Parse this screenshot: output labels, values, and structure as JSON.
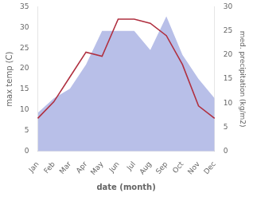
{
  "chart_data": {
    "type": "line",
    "categories": [
      "Jan",
      "Feb",
      "Mar",
      "Apr",
      "May",
      "Jun",
      "Jul",
      "Aug",
      "Sep",
      "Oct",
      "Nov",
      "Dec"
    ],
    "series": [
      {
        "type": "area",
        "color": "#b8bfe8",
        "axis": "y2",
        "values": [
          8,
          11,
          13,
          18,
          25,
          25,
          25,
          21,
          28,
          20,
          15,
          11
        ]
      },
      {
        "type": "line",
        "color": "#b03040",
        "values": [
          8,
          12,
          18,
          24,
          23,
          32,
          32,
          31,
          28,
          21,
          11,
          8
        ]
      }
    ],
    "xlabel": "date (month)",
    "ylabel": "max temp (C)",
    "y2label": "med. precipitation (kg/m2)",
    "ylim": [
      0,
      35
    ],
    "yticks": [
      0,
      5,
      10,
      15,
      20,
      25,
      30,
      35
    ],
    "y2lim": [
      0,
      30
    ],
    "y2ticks": [
      0,
      5,
      10,
      15,
      20,
      25,
      30
    ],
    "grid": false
  }
}
